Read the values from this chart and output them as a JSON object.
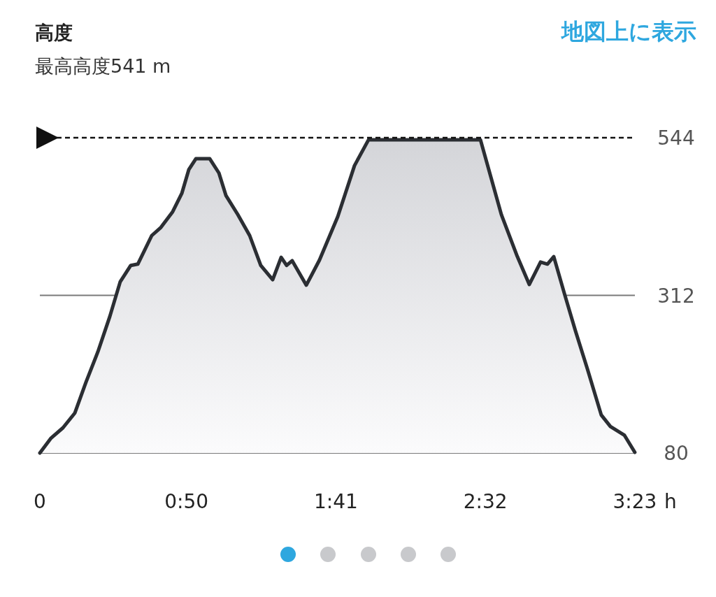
{
  "chart_data": {
    "type": "area",
    "title": "高度",
    "subtitle": "最高高度541 m",
    "xlabel": "h",
    "annotations": [
      "地図上に表示"
    ],
    "x": [
      0,
      0.064,
      0.131,
      0.199,
      0.262,
      0.33,
      0.398,
      0.457,
      0.517,
      0.557,
      0.636,
      0.688,
      0.755,
      0.807,
      0.847,
      0.887,
      0.966,
      1.018,
      1.058,
      1.125,
      1.193,
      1.256,
      1.324,
      1.372,
      1.403,
      1.435,
      1.515,
      1.59,
      1.694,
      1.789,
      1.869,
      2.505,
      2.624,
      2.715,
      2.783,
      2.847,
      2.886,
      2.922,
      2.982,
      3.045,
      3.113,
      3.192,
      3.244,
      3.324,
      3.383
    ],
    "values": [
      80,
      102,
      117,
      139,
      184,
      229,
      281,
      332,
      356,
      358,
      400,
      412,
      435,
      462,
      497,
      513,
      513,
      492,
      459,
      431,
      400,
      356,
      335,
      368,
      356,
      363,
      327,
      364,
      428,
      503,
      541,
      541,
      431,
      369,
      328,
      361,
      358,
      369,
      315,
      260,
      204,
      136,
      119,
      106,
      81
    ],
    "color": "#2b2e33",
    "xlim": [
      0,
      3.3833
    ],
    "ylim": [
      80,
      544
    ],
    "xticks": [
      {
        "value": 0,
        "label": "0"
      },
      {
        "value": 0.8333,
        "label": "0:50"
      },
      {
        "value": 1.6833,
        "label": "1:41"
      },
      {
        "value": 2.5333,
        "label": "2:32"
      },
      {
        "value": 3.3833,
        "label": "3:23"
      }
    ],
    "yticks": [
      80,
      312,
      544
    ],
    "grid": "y",
    "ref_lines": [
      {
        "axis": "y",
        "value": 544,
        "line_style": "dashed"
      }
    ]
  }
}
